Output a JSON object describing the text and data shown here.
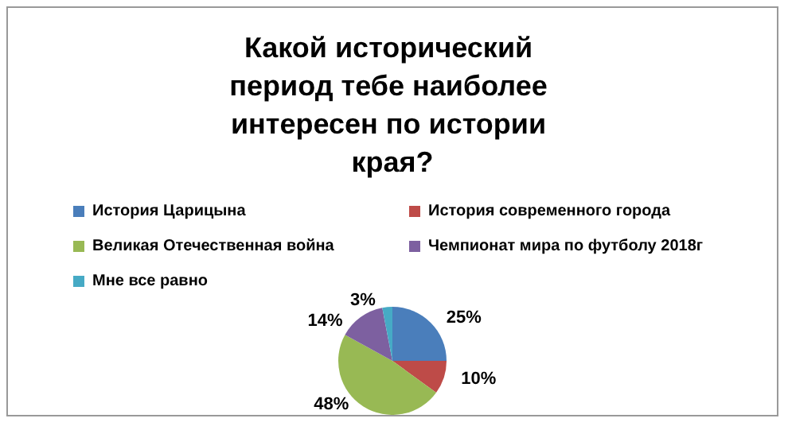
{
  "chart_data": {
    "type": "pie",
    "title": "Какой исторический период тебе наиболее интересен по истории края?",
    "categories": [
      "История Царицына",
      "История современного города",
      "Великая Отечественная война",
      "Чемпионат мира по футболу 2018г",
      "Мне все равно"
    ],
    "values": [
      25,
      10,
      48,
      14,
      3
    ],
    "colors": [
      "#4a7ebb",
      "#be4b48",
      "#98b954",
      "#7d60a0",
      "#46aac5"
    ],
    "value_labels": [
      "25%",
      "10%",
      "48%",
      "14%",
      "3%"
    ],
    "legend": "top"
  }
}
